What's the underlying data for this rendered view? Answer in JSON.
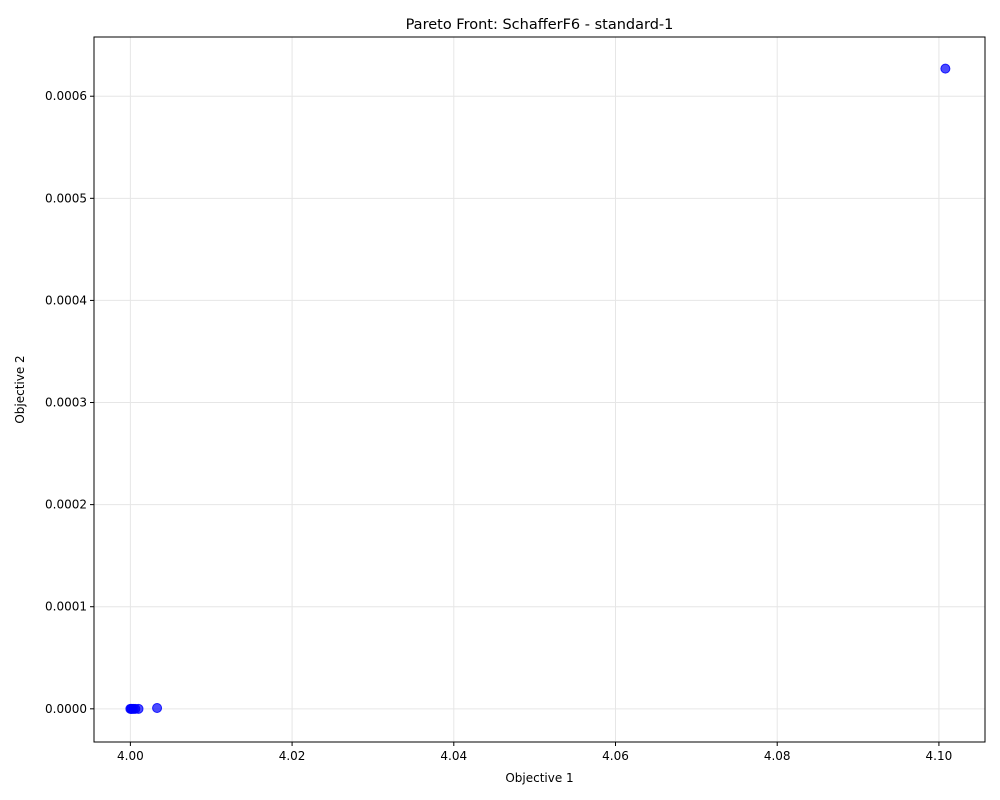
{
  "chart_data": {
    "type": "scatter",
    "title": "Pareto Front: SchafferF6 - standard-1",
    "xlabel": "Objective 1",
    "ylabel": "Objective 2",
    "xlim": [
      3.9955,
      4.1057
    ],
    "ylim": [
      -3.25e-05,
      0.000658
    ],
    "xticks": [
      4.0,
      4.02,
      4.04,
      4.06,
      4.08,
      4.1
    ],
    "xtick_labels": [
      "4.00",
      "4.02",
      "4.04",
      "4.06",
      "4.08",
      "4.10"
    ],
    "yticks": [
      0.0,
      0.0001,
      0.0002,
      0.0003,
      0.0004,
      0.0005,
      0.0006
    ],
    "ytick_labels": [
      "0.0000",
      "0.0001",
      "0.0002",
      "0.0003",
      "0.0004",
      "0.0005",
      "0.0006"
    ],
    "grid": true,
    "marker_color": "#0000ff",
    "points": [
      {
        "x": 4.0,
        "y": 0.0
      },
      {
        "x": 4.0001,
        "y": 0.0
      },
      {
        "x": 4.0002,
        "y": 0.0
      },
      {
        "x": 4.0004,
        "y": 0.0
      },
      {
        "x": 4.0006,
        "y": 0.0
      },
      {
        "x": 4.001,
        "y": 0.0
      },
      {
        "x": 4.0033,
        "y": 8e-07
      },
      {
        "x": 4.1008,
        "y": 0.000627
      }
    ]
  }
}
